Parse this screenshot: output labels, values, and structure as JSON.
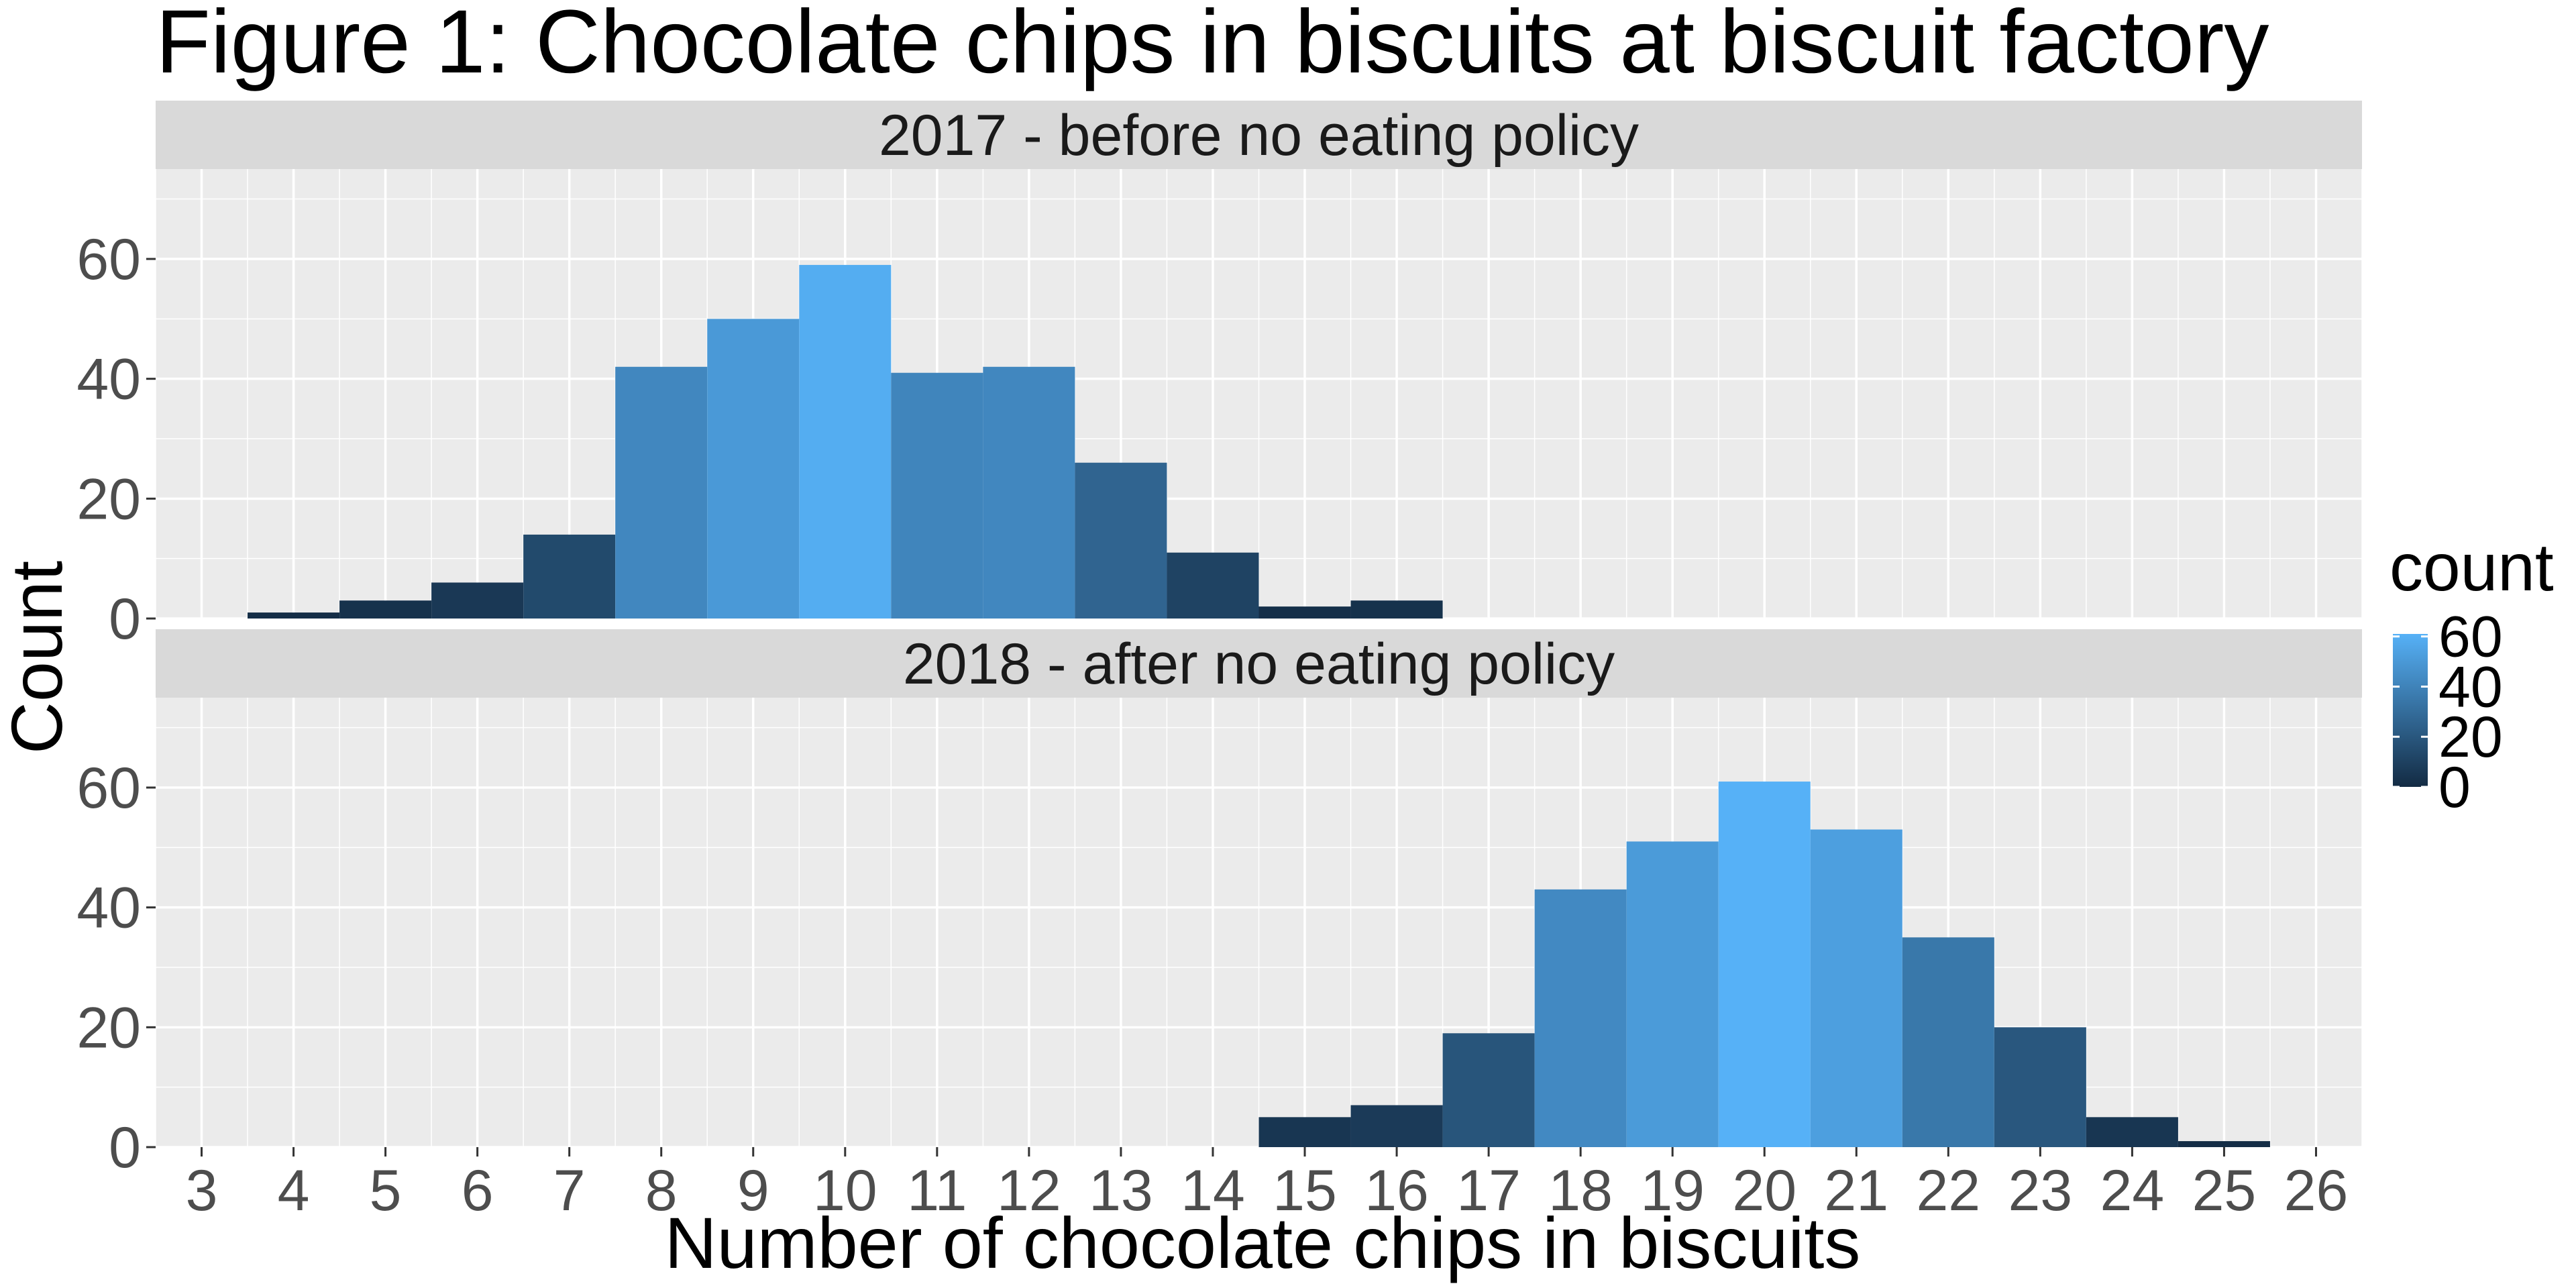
{
  "chart_data": {
    "type": "bar",
    "title": "Figure 1: Chocolate chips in biscuits at biscuit factory",
    "xlabel": "Number of chocolate chips in biscuits",
    "ylabel": "Count",
    "xlim": [
      2.5,
      26.5
    ],
    "ylim": [
      0,
      75
    ],
    "x_ticks": [
      3,
      4,
      5,
      6,
      7,
      8,
      9,
      10,
      11,
      12,
      13,
      14,
      15,
      16,
      17,
      18,
      19,
      20,
      21,
      22,
      23,
      24,
      25,
      26
    ],
    "y_ticks": [
      0,
      20,
      40,
      60
    ],
    "grid": true,
    "panels": [
      {
        "strip": "2017 - before no eating policy",
        "categories": [
          4,
          5,
          6,
          7,
          8,
          9,
          10,
          11,
          12,
          13,
          14,
          15,
          16
        ],
        "values": [
          1,
          3,
          6,
          14,
          42,
          50,
          59,
          41,
          42,
          26,
          11,
          2,
          3
        ]
      },
      {
        "strip": "2018 - after no eating policy",
        "categories": [
          15,
          16,
          17,
          18,
          19,
          20,
          21,
          22,
          23,
          24,
          25
        ],
        "values": [
          5,
          7,
          19,
          43,
          51,
          61,
          53,
          35,
          20,
          5,
          1
        ]
      }
    ],
    "legend": {
      "title": "count",
      "ticks": [
        0,
        20,
        40,
        60
      ],
      "position": "right",
      "low_color": "#132b43",
      "high_color": "#56b1f7",
      "range": [
        0,
        61
      ]
    },
    "colors": {
      "panel_bg": "#ebebeb",
      "strip_bg": "#d9d9d9",
      "grid": "#ffffff"
    }
  }
}
